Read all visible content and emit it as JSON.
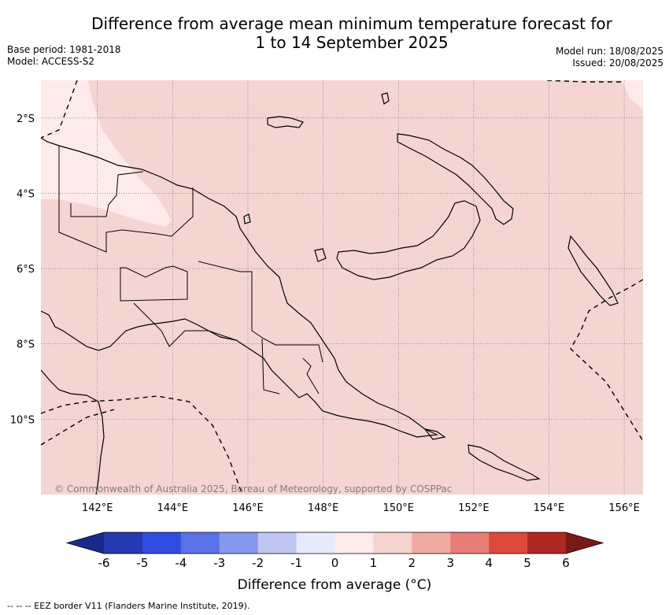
{
  "title_line1": "Difference from average mean minimum temperature forecast for",
  "title_line2": "1 to 14 September 2025",
  "base_period": "Base period: 1981-2018",
  "model": "Model: ACCESS-S2",
  "model_run": "Model run: 18/08/2025",
  "issued": "Issued: 20/08/2025",
  "copyright": "© Commonwealth of Australia 2025, Bureau of Meteorology, supported by COSPPac",
  "map": {
    "lon_range": [
      140.5,
      156.5
    ],
    "lat_range": [
      -12.0,
      -1.0
    ],
    "lon_ticks": [
      142,
      144,
      146,
      148,
      150,
      152,
      154,
      156
    ],
    "lat_ticks": [
      -2,
      -4,
      -6,
      -8,
      -10
    ],
    "lon_tick_labels": [
      "142°E",
      "144°E",
      "146°E",
      "148°E",
      "150°E",
      "152°E",
      "154°E",
      "156°E"
    ],
    "lat_tick_labels": [
      "2°S",
      "4°S",
      "6°S",
      "8°S",
      "10°S"
    ],
    "background_color": "#f5d5d2",
    "low_anomaly_color": "#fdebe9",
    "grid": true
  },
  "colorbar": {
    "ticks": [
      "-6",
      "-5",
      "-4",
      "-3",
      "-2",
      "-1",
      "0",
      "1",
      "2",
      "3",
      "4",
      "5",
      "6"
    ],
    "colors": [
      "#2539b0",
      "#2f4ee0",
      "#5a72e8",
      "#8797ee",
      "#bfc6f4",
      "#e6eafa",
      "#fdebe9",
      "#f5d3cf",
      "#f0aaa4",
      "#e77f76",
      "#dc4a3e",
      "#ae2921"
    ],
    "low_extend_color": "#1b2a8a",
    "high_extend_color": "#7a1a16",
    "label": "Difference from average (°C)"
  },
  "footer": "--  --  -- EEZ border V11 (Flanders Marine Institute, 2019)."
}
